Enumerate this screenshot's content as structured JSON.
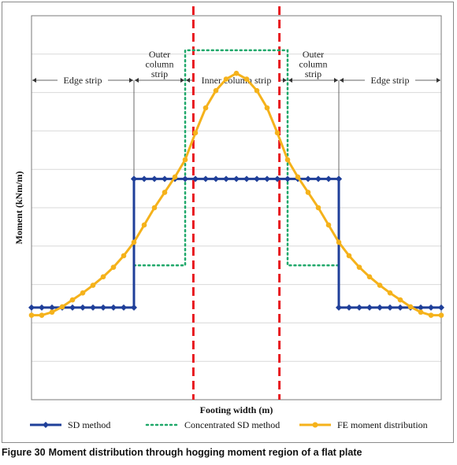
{
  "chart_data": {
    "type": "line",
    "xlabel": "Footing width (m)",
    "ylabel": "Moment (kNm/m)",
    "xlim": [
      0,
      40
    ],
    "ylim": [
      0,
      10
    ],
    "grid": true,
    "legend_placement": "bottom",
    "strips": [
      {
        "label_lines": [
          "Edge strip"
        ],
        "x0": 0,
        "x1": 10
      },
      {
        "label_lines": [
          "Outer",
          "column",
          "strip"
        ],
        "x0": 10,
        "x1": 15
      },
      {
        "label_lines": [
          "Inner column strip"
        ],
        "x0": 15,
        "x1": 25
      },
      {
        "label_lines": [
          "Outer",
          "column",
          "strip"
        ],
        "x0": 25,
        "x1": 30
      },
      {
        "label_lines": [
          "Edge strip"
        ],
        "x0": 30,
        "x1": 40
      }
    ],
    "vertical_markers": [
      {
        "x": 15.8,
        "color": "#e8191f"
      },
      {
        "x": 24.2,
        "color": "#e8191f"
      }
    ],
    "series": [
      {
        "name": "SD method",
        "color": "#1f3f99",
        "style": "solid-diamond",
        "x": [
          0,
          1,
          2,
          3,
          4,
          5,
          6,
          7,
          8,
          9,
          10,
          10,
          10,
          11,
          12,
          13,
          14,
          15,
          16,
          17,
          18,
          19,
          20,
          21,
          22,
          23,
          24,
          25,
          26,
          27,
          28,
          29,
          30,
          30,
          30,
          31,
          32,
          33,
          34,
          35,
          36,
          37,
          38,
          39,
          40
        ],
        "y": [
          2.4,
          2.4,
          2.4,
          2.4,
          2.4,
          2.4,
          2.4,
          2.4,
          2.4,
          2.4,
          2.4,
          5.75,
          5.75,
          5.75,
          5.75,
          5.75,
          5.75,
          5.75,
          5.75,
          5.75,
          5.75,
          5.75,
          5.75,
          5.75,
          5.75,
          5.75,
          5.75,
          5.75,
          5.75,
          5.75,
          5.75,
          5.75,
          5.75,
          5.75,
          2.4,
          2.4,
          2.4,
          2.4,
          2.4,
          2.4,
          2.4,
          2.4,
          2.4,
          2.4,
          2.4
        ]
      },
      {
        "name": "Concentrated SD method",
        "color": "#1fa86a",
        "style": "dotted",
        "x": [
          10,
          15,
          15,
          25,
          25,
          30
        ],
        "y": [
          3.5,
          3.5,
          9.1,
          9.1,
          3.5,
          3.5
        ]
      },
      {
        "name": "FE moment distribution",
        "color": "#f5b21b",
        "style": "solid-circle",
        "x": [
          0,
          1,
          2,
          3,
          4,
          5,
          6,
          7,
          8,
          9,
          10,
          11,
          12,
          13,
          14,
          15,
          16,
          17,
          18,
          19,
          20,
          21,
          22,
          23,
          24,
          25,
          26,
          27,
          28,
          29,
          30,
          31,
          32,
          33,
          34,
          35,
          36,
          37,
          38,
          39,
          40
        ],
        "y": [
          2.2,
          2.2,
          2.28,
          2.42,
          2.6,
          2.78,
          2.98,
          3.2,
          3.45,
          3.75,
          4.1,
          4.55,
          5.0,
          5.4,
          5.8,
          6.25,
          6.95,
          7.6,
          8.05,
          8.35,
          8.5,
          8.35,
          8.05,
          7.6,
          6.95,
          6.25,
          5.8,
          5.4,
          5.0,
          4.55,
          4.1,
          3.75,
          3.45,
          3.2,
          2.98,
          2.78,
          2.6,
          2.42,
          2.28,
          2.2,
          2.2
        ]
      }
    ]
  },
  "caption": {
    "number": "Figure 30",
    "text": "Moment distribution through hogging moment region of a flat plate"
  }
}
